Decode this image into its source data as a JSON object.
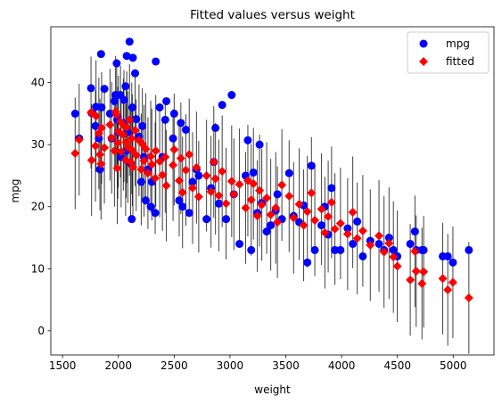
{
  "chart_data": {
    "type": "scatter",
    "title": "Fitted values versus weight",
    "xlabel": "weight",
    "ylabel": "mpg",
    "xlim": [
      1395,
      5365
    ],
    "ylim": [
      -3.9,
      49.0
    ],
    "xticks": [
      1500,
      2000,
      2500,
      3000,
      3500,
      4000,
      4500,
      5000
    ],
    "yticks": [
      0,
      10,
      20,
      30,
      40
    ],
    "grid": false,
    "legend_position": "top-right",
    "series": [
      {
        "name": "mpg",
        "marker": "circle",
        "color": "#0000ff",
        "points": [
          [
            1613,
            35.0
          ],
          [
            1649,
            31.0
          ],
          [
            1755,
            39.1
          ],
          [
            1760,
            35.1
          ],
          [
            1795,
            33.0
          ],
          [
            1800,
            36.1
          ],
          [
            1825,
            31.0
          ],
          [
            1835,
            26.0
          ],
          [
            1845,
            44.6
          ],
          [
            1850,
            36.0
          ],
          [
            1875,
            39.0
          ],
          [
            1925,
            35.0
          ],
          [
            1940,
            31.0
          ],
          [
            1965,
            37.0
          ],
          [
            1975,
            38.0
          ],
          [
            1985,
            43.1
          ],
          [
            1990,
            34.0
          ],
          [
            1995,
            34.5
          ],
          [
            2000,
            32.0
          ],
          [
            2019,
            38.0
          ],
          [
            2025,
            28.0
          ],
          [
            2045,
            33.5
          ],
          [
            2050,
            37.2
          ],
          [
            2065,
            39.4
          ],
          [
            2070,
            29.0
          ],
          [
            2075,
            44.3
          ],
          [
            2085,
            32.0
          ],
          [
            2100,
            46.6
          ],
          [
            2110,
            27.0
          ],
          [
            2120,
            18.0
          ],
          [
            2125,
            36.0
          ],
          [
            2130,
            44.0
          ],
          [
            2150,
            41.5
          ],
          [
            2160,
            34.1
          ],
          [
            2185,
            31.3
          ],
          [
            2205,
            24.0
          ],
          [
            2215,
            33.0
          ],
          [
            2230,
            28.0
          ],
          [
            2245,
            21.0
          ],
          [
            2265,
            26.0
          ],
          [
            2290,
            20.0
          ],
          [
            2300,
            24.0
          ],
          [
            2330,
            19.0
          ],
          [
            2335,
            43.4
          ],
          [
            2370,
            36.0
          ],
          [
            2395,
            28.0
          ],
          [
            2420,
            34.0
          ],
          [
            2430,
            37.0
          ],
          [
            2490,
            31.0
          ],
          [
            2500,
            35.0
          ],
          [
            2545,
            21.0
          ],
          [
            2560,
            33.5
          ],
          [
            2575,
            20.0
          ],
          [
            2605,
            32.4
          ],
          [
            2635,
            19.0
          ],
          [
            2665,
            24.0
          ],
          [
            2700,
            26.0
          ],
          [
            2720,
            25.0
          ],
          [
            2790,
            18.0
          ],
          [
            2830,
            23.0
          ],
          [
            2855,
            27.2
          ],
          [
            2870,
            32.7
          ],
          [
            2900,
            20.5
          ],
          [
            2930,
            36.4
          ],
          [
            2965,
            18.0
          ],
          [
            3015,
            38.0
          ],
          [
            3035,
            22.0
          ],
          [
            3085,
            14.0
          ],
          [
            3140,
            25.0
          ],
          [
            3160,
            30.7
          ],
          [
            3190,
            13.0
          ],
          [
            3210,
            25.5
          ],
          [
            3245,
            19.0
          ],
          [
            3265,
            30.0
          ],
          [
            3285,
            20.6
          ],
          [
            3329,
            16.0
          ],
          [
            3365,
            17.0
          ],
          [
            3410,
            19.4
          ],
          [
            3425,
            22.0
          ],
          [
            3465,
            18.0
          ],
          [
            3530,
            25.4
          ],
          [
            3570,
            18.5
          ],
          [
            3620,
            17.5
          ],
          [
            3660,
            20.2
          ],
          [
            3693,
            11.0
          ],
          [
            3730,
            26.6
          ],
          [
            3760,
            13.0
          ],
          [
            3820,
            17.0
          ],
          [
            3850,
            20.0
          ],
          [
            3880,
            15.5
          ],
          [
            3910,
            23.0
          ],
          [
            3940,
            13.0
          ],
          [
            3990,
            13.0
          ],
          [
            4054,
            16.5
          ],
          [
            4100,
            14.0
          ],
          [
            4140,
            17.6
          ],
          [
            4190,
            12.0
          ],
          [
            4257,
            14.5
          ],
          [
            4335,
            14.0
          ],
          [
            4380,
            13.0
          ],
          [
            4425,
            15.0
          ],
          [
            4464,
            13.0
          ],
          [
            4499,
            12.0
          ],
          [
            4615,
            14.0
          ],
          [
            4657,
            16.0
          ],
          [
            4668,
            13.0
          ],
          [
            4720,
            13.0
          ],
          [
            4735,
            13.0
          ],
          [
            4906,
            12.0
          ],
          [
            4951,
            12.0
          ],
          [
            4997,
            11.0
          ],
          [
            5140,
            13.0
          ]
        ]
      },
      {
        "name": "fitted",
        "marker": "diamond",
        "color": "#ff0000",
        "points": [
          [
            1613,
            28.6
          ],
          [
            1649,
            30.8
          ],
          [
            1755,
            35.2
          ],
          [
            1760,
            27.5
          ],
          [
            1795,
            29.8
          ],
          [
            1800,
            34.6
          ],
          [
            1825,
            31.8
          ],
          [
            1835,
            28.4
          ],
          [
            1845,
            26.9
          ],
          [
            1850,
            32.7
          ],
          [
            1875,
            29.5
          ],
          [
            1925,
            33.2
          ],
          [
            1940,
            31.1
          ],
          [
            1965,
            29.0
          ],
          [
            1975,
            35.3
          ],
          [
            1985,
            34.8
          ],
          [
            1990,
            26.2
          ],
          [
            1995,
            30.3
          ],
          [
            2000,
            32.1
          ],
          [
            2019,
            33.7
          ],
          [
            2025,
            28.9
          ],
          [
            2045,
            31.6
          ],
          [
            2050,
            33.0
          ],
          [
            2065,
            27.5
          ],
          [
            2070,
            30.4
          ],
          [
            2075,
            32.8
          ],
          [
            2085,
            29.6
          ],
          [
            2100,
            34.0
          ],
          [
            2110,
            27.2
          ],
          [
            2120,
            31.0
          ],
          [
            2125,
            29.1
          ],
          [
            2130,
            26.4
          ],
          [
            2150,
            32.3
          ],
          [
            2160,
            28.3
          ],
          [
            2185,
            30.7
          ],
          [
            2205,
            26.0
          ],
          [
            2215,
            30.1
          ],
          [
            2230,
            27.4
          ],
          [
            2245,
            29.3
          ],
          [
            2265,
            25.4
          ],
          [
            2290,
            28.1
          ],
          [
            2300,
            26.8
          ],
          [
            2330,
            24.6
          ],
          [
            2335,
            29.0
          ],
          [
            2370,
            27.3
          ],
          [
            2395,
            25.1
          ],
          [
            2420,
            28.0
          ],
          [
            2430,
            23.4
          ],
          [
            2490,
            26.7
          ],
          [
            2500,
            29.2
          ],
          [
            2545,
            24.2
          ],
          [
            2560,
            27.8
          ],
          [
            2575,
            22.3
          ],
          [
            2605,
            25.9
          ],
          [
            2635,
            28.4
          ],
          [
            2665,
            23.0
          ],
          [
            2700,
            26.3
          ],
          [
            2720,
            21.6
          ],
          [
            2790,
            25.0
          ],
          [
            2830,
            22.4
          ],
          [
            2855,
            27.2
          ],
          [
            2870,
            24.5
          ],
          [
            2900,
            21.8
          ],
          [
            2930,
            25.7
          ],
          [
            2965,
            20.5
          ],
          [
            3015,
            24.1
          ],
          [
            3035,
            22.0
          ],
          [
            3085,
            23.6
          ],
          [
            3140,
            19.8
          ],
          [
            3160,
            24.2
          ],
          [
            3190,
            21.1
          ],
          [
            3210,
            23.7
          ],
          [
            3245,
            18.5
          ],
          [
            3265,
            22.6
          ],
          [
            3285,
            20.3
          ],
          [
            3329,
            21.4
          ],
          [
            3365,
            18.7
          ],
          [
            3410,
            19.8
          ],
          [
            3425,
            17.5
          ],
          [
            3465,
            23.5
          ],
          [
            3530,
            21.7
          ],
          [
            3570,
            18.2
          ],
          [
            3620,
            20.4
          ],
          [
            3660,
            17.0
          ],
          [
            3693,
            19.2
          ],
          [
            3730,
            22.2
          ],
          [
            3760,
            17.8
          ],
          [
            3820,
            19.6
          ],
          [
            3850,
            15.8
          ],
          [
            3880,
            18.4
          ],
          [
            3910,
            20.7
          ],
          [
            3940,
            16.4
          ],
          [
            3990,
            17.3
          ],
          [
            4054,
            15.6
          ],
          [
            4100,
            19.1
          ],
          [
            4140,
            14.9
          ],
          [
            4190,
            16.1
          ],
          [
            4257,
            13.8
          ],
          [
            4335,
            15.3
          ],
          [
            4380,
            12.7
          ],
          [
            4425,
            14.1
          ],
          [
            4464,
            11.9
          ],
          [
            4499,
            10.4
          ],
          [
            4615,
            8.2
          ],
          [
            4657,
            12.8
          ],
          [
            4668,
            9.6
          ],
          [
            4720,
            7.6
          ],
          [
            4735,
            9.5
          ],
          [
            4906,
            8.4
          ],
          [
            4951,
            6.6
          ],
          [
            4997,
            7.8
          ],
          [
            5140,
            5.3
          ]
        ]
      }
    ],
    "errorbars": {
      "color": "#000000",
      "label": "",
      "half_width": 9.0
    }
  }
}
